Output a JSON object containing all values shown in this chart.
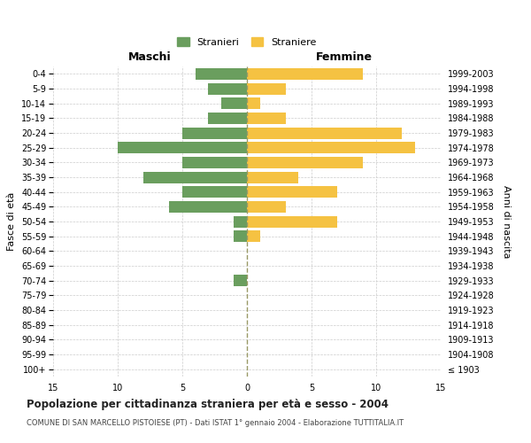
{
  "age_groups": [
    "100+",
    "95-99",
    "90-94",
    "85-89",
    "80-84",
    "75-79",
    "70-74",
    "65-69",
    "60-64",
    "55-59",
    "50-54",
    "45-49",
    "40-44",
    "35-39",
    "30-34",
    "25-29",
    "20-24",
    "15-19",
    "10-14",
    "5-9",
    "0-4"
  ],
  "birth_years": [
    "≤ 1903",
    "1904-1908",
    "1909-1913",
    "1914-1918",
    "1919-1923",
    "1924-1928",
    "1929-1933",
    "1934-1938",
    "1939-1943",
    "1944-1948",
    "1949-1953",
    "1954-1958",
    "1959-1963",
    "1964-1968",
    "1969-1973",
    "1974-1978",
    "1979-1983",
    "1984-1988",
    "1989-1993",
    "1994-1998",
    "1999-2003"
  ],
  "males": [
    0,
    0,
    0,
    0,
    0,
    0,
    1,
    0,
    0,
    1,
    1,
    6,
    5,
    8,
    5,
    10,
    5,
    3,
    2,
    3,
    4
  ],
  "females": [
    0,
    0,
    0,
    0,
    0,
    0,
    0,
    0,
    0,
    1,
    7,
    3,
    7,
    4,
    9,
    13,
    12,
    3,
    1,
    3,
    9
  ],
  "male_color": "#6a9e5e",
  "female_color": "#f5c242",
  "center_line_color": "#999966",
  "grid_color": "#cccccc",
  "title": "Popolazione per cittadinanza straniera per età e sesso - 2004",
  "subtitle": "COMUNE DI SAN MARCELLO PISTOIESE (PT) - Dati ISTAT 1° gennaio 2004 - Elaborazione TUTTITALIA.IT",
  "xlabel_left": "Maschi",
  "xlabel_right": "Femmine",
  "ylabel_left": "Fasce di età",
  "ylabel_right": "Anni di nascita",
  "legend_male": "Stranieri",
  "legend_female": "Straniere",
  "xlim": 15,
  "background_color": "#ffffff"
}
